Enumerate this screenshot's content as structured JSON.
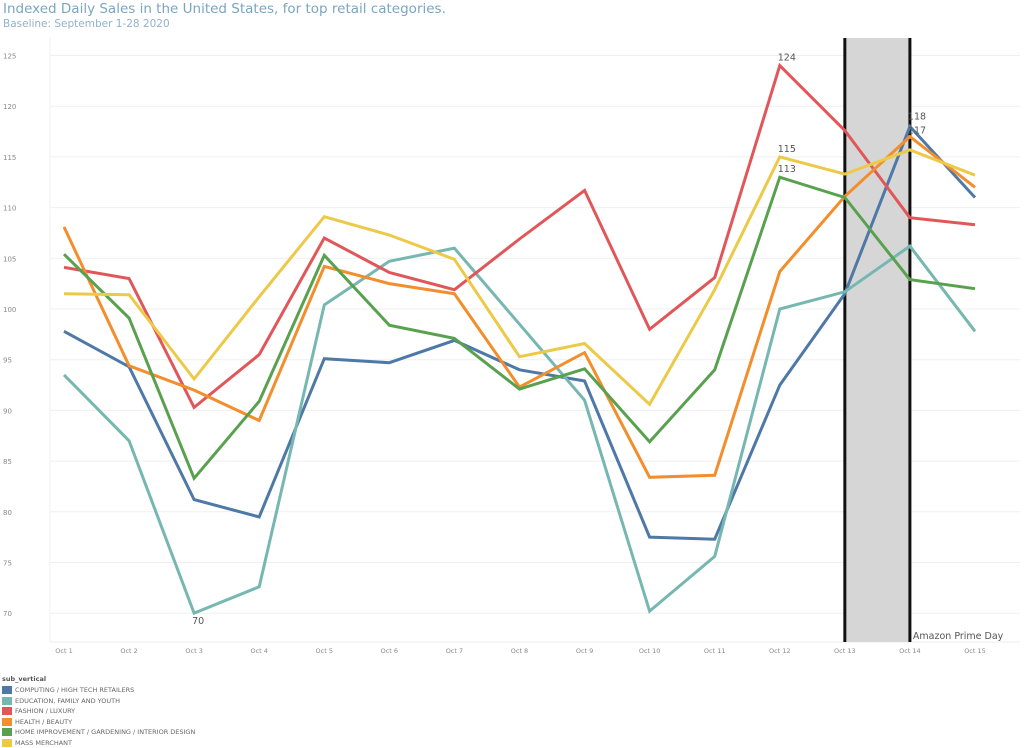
{
  "chart_data": {
    "type": "line",
    "title": "Indexed Daily Sales in the United States, for top retail categories.",
    "subtitle": "Baseline: September 1-28 2020",
    "xlabel": "",
    "ylabel": "",
    "ylim": [
      67,
      127
    ],
    "yticks": [
      70,
      75,
      80,
      85,
      90,
      95,
      100,
      105,
      110,
      115,
      120,
      125
    ],
    "grid": true,
    "categories": [
      "Oct 1",
      "Oct 2",
      "Oct 3",
      "Oct 4",
      "Oct 5",
      "Oct 6",
      "Oct 7",
      "Oct 8",
      "Oct 9",
      "Oct 10",
      "Oct 11",
      "Oct 12",
      "Oct 13",
      "Oct 14",
      "Oct 15"
    ],
    "legend_title": "sub_vertical",
    "legend_position": "bottom-left",
    "series": [
      {
        "name": "COMPUTING / HIGH TECH RETAILERS",
        "color": "#4e79a7",
        "values": [
          97.8,
          94.3,
          81.2,
          79.5,
          95.1,
          94.7,
          96.9,
          94.0,
          92.9,
          77.5,
          77.3,
          92.5,
          101.5,
          118.0,
          111.0
        ]
      },
      {
        "name": "EDUCATION, FAMILY AND YOUTH",
        "color": "#76b7b2",
        "values": [
          93.5,
          87.0,
          70.0,
          72.6,
          100.4,
          104.7,
          106.0,
          98.5,
          91.0,
          70.2,
          75.6,
          100.0,
          101.7,
          106.2,
          97.8
        ]
      },
      {
        "name": "FASHION / LUXURY",
        "color": "#e15759",
        "values": [
          104.1,
          103.0,
          90.3,
          95.5,
          107.0,
          103.6,
          101.9,
          106.9,
          111.7,
          98.0,
          103.1,
          124.0,
          117.6,
          109.0,
          108.3
        ]
      },
      {
        "name": "HEALTH / BEAUTY",
        "color": "#f28e2b",
        "values": [
          108.1,
          94.4,
          92.0,
          89.0,
          104.2,
          102.5,
          101.5,
          92.3,
          95.7,
          83.4,
          83.6,
          103.7,
          111.1,
          117.0,
          112.0
        ]
      },
      {
        "name": "HOME IMPROVEMENT / GARDENING / INTERIOR DESIGN",
        "color": "#59a14f",
        "values": [
          105.4,
          99.1,
          83.3,
          90.9,
          105.3,
          98.4,
          97.1,
          92.1,
          94.1,
          86.9,
          94.0,
          113.0,
          111.0,
          102.9,
          102.0
        ]
      },
      {
        "name": "MASS MERCHANT",
        "color": "#edc948",
        "values": [
          101.5,
          101.4,
          93.1,
          101.2,
          109.1,
          107.3,
          104.9,
          95.3,
          96.6,
          90.6,
          101.9,
          115.0,
          113.3,
          115.7,
          113.2
        ]
      }
    ],
    "data_labels": [
      {
        "series": 2,
        "index": 11,
        "text": "124"
      },
      {
        "series": 5,
        "index": 11,
        "text": "115"
      },
      {
        "series": 4,
        "index": 11,
        "text": "113"
      },
      {
        "series": 0,
        "index": 13,
        "text": "118"
      },
      {
        "series": 3,
        "index": 13,
        "text": "117"
      },
      {
        "series": 1,
        "index": 2,
        "text": "70"
      }
    ],
    "annotations": [
      {
        "text": "Amazon Prime Day",
        "from": "Oct 13",
        "to": "Oct 14",
        "shade_color": "#d6d6d6"
      }
    ]
  }
}
